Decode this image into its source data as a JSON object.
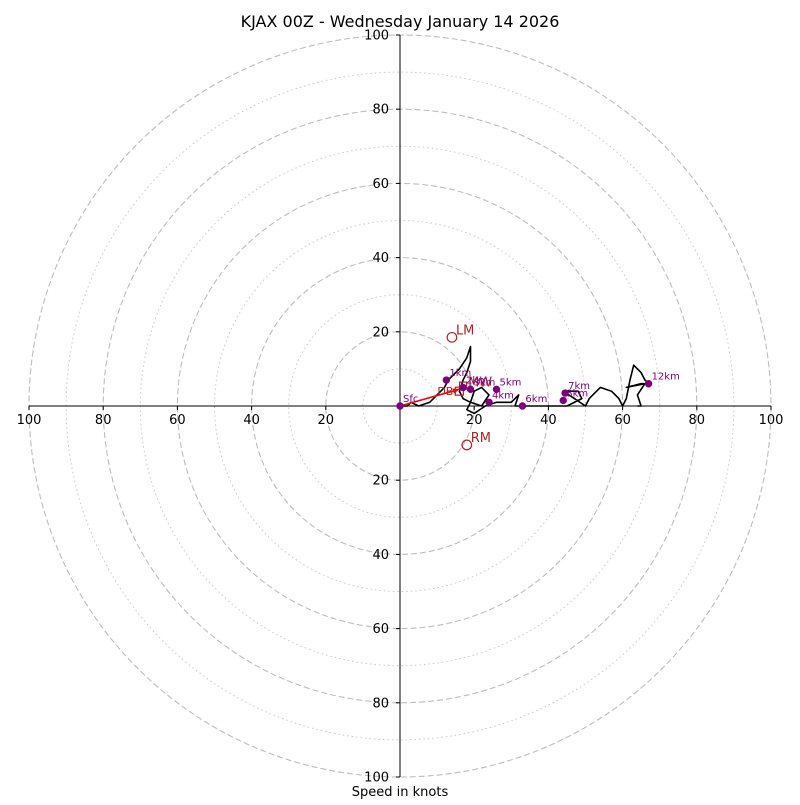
{
  "chart_data": {
    "type": "scatter",
    "subtype": "hodograph",
    "title": "KJAX 00Z - Wednesday January 14 2026",
    "xlabel": "Speed in knots",
    "ylabel": "",
    "xlim": [
      -100,
      100
    ],
    "ylim": [
      -100,
      100
    ],
    "grid": true,
    "rings_major": [
      20,
      40,
      60,
      80,
      100
    ],
    "rings_minor": [
      10,
      30,
      50,
      70,
      90
    ],
    "x_tick_labels": [
      "100",
      "80",
      "60",
      "40",
      "20",
      "20",
      "40",
      "60",
      "80",
      "100"
    ],
    "x_tick_values": [
      -100,
      -80,
      -60,
      -40,
      -20,
      20,
      40,
      60,
      80,
      100
    ],
    "y_tick_labels": [
      "100",
      "80",
      "60",
      "40",
      "20",
      "20",
      "40",
      "60",
      "80",
      "100"
    ],
    "y_tick_values": [
      100,
      80,
      60,
      40,
      20,
      -20,
      -40,
      -60,
      -80,
      -100
    ],
    "profile_color": "#000000",
    "point_color": "#800080",
    "motion_color": "#b22222",
    "shear_color": "#ff0000",
    "profile": {
      "u": [
        0,
        1,
        2,
        3,
        5,
        8,
        10,
        12,
        13,
        14,
        16,
        18,
        19,
        19,
        18,
        17,
        16,
        17,
        19,
        22,
        24,
        22,
        20,
        19,
        18,
        20,
        23,
        26,
        30,
        31,
        32,
        31,
        33,
        36,
        40,
        45,
        49,
        48,
        44,
        47,
        50,
        51,
        53,
        54,
        57,
        59,
        60,
        61,
        62,
        63,
        65,
        66,
        67,
        65,
        61,
        66,
        64,
        65,
        64
      ],
      "v": [
        0,
        0,
        0,
        1,
        0,
        1,
        3,
        5,
        7,
        8,
        10,
        13,
        16,
        12,
        9,
        7,
        4,
        2,
        1,
        0,
        3,
        5,
        4,
        1,
        -1,
        -2,
        0,
        1,
        1,
        2,
        3,
        0,
        0,
        0,
        0,
        0,
        2,
        4,
        4,
        2,
        0,
        2,
        4,
        5,
        4,
        2,
        0,
        2,
        7,
        11,
        9,
        7,
        6,
        6,
        5,
        6,
        3,
        0,
        0
      ]
    },
    "height_markers": [
      {
        "label": "Sfc",
        "u": 0,
        "v": 0
      },
      {
        "label": "1km",
        "u": 12.5,
        "v": 7
      },
      {
        "label": "2km",
        "u": 17,
        "v": 5
      },
      {
        "label": "3km",
        "u": 19,
        "v": 4.5
      },
      {
        "label": "4km",
        "u": 24,
        "v": 1
      },
      {
        "label": "5km",
        "u": 26,
        "v": 4.5
      },
      {
        "label": "6km",
        "u": 33,
        "v": 0
      },
      {
        "label": "7km",
        "u": 44.5,
        "v": 3.5
      },
      {
        "label": "8km",
        "u": 44,
        "v": 1.5
      },
      {
        "label": "12km",
        "u": 67,
        "v": 6
      }
    ],
    "storm_motions": [
      {
        "label": "LM",
        "u": 14,
        "v": 18.5
      },
      {
        "label": "RM",
        "u": 18,
        "v": -10.5
      }
    ],
    "mean_wind": {
      "label": "MW",
      "u": 17,
      "v": 5.5
    },
    "bunkers_box": {
      "label": "DB",
      "u": 16,
      "v": 4
    },
    "shear_vector": {
      "from_u": 0,
      "from_v": 0,
      "to_u": 16,
      "to_v": 4.5
    }
  }
}
